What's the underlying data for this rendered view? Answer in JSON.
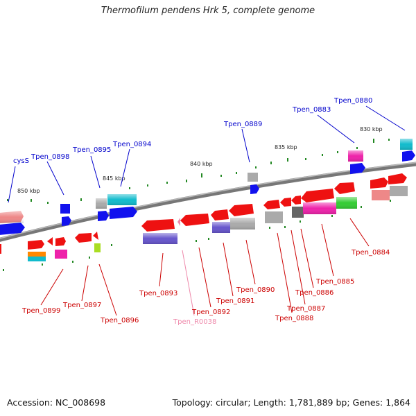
{
  "title": "Thermofilum pendens Hrk 5, complete genome",
  "footer": {
    "accession": "Accession: NC_008698",
    "summary": "Topology: circular; Length: 1,781,889 bp; Genes: 1,864"
  },
  "scale_labels": [
    "850 kbp",
    "845 kbp",
    "840 kbp",
    "835 kbp",
    "830 kbp"
  ],
  "gene_labels": {
    "top": [
      "cysS",
      "Tpen_0898",
      "Tpen_0895",
      "Tpen_0894",
      "Tpen_0889",
      "Tpen_0883",
      "Tpen_0880"
    ],
    "bottom": [
      "Tpen_0899",
      "Tpen_0897",
      "Tpen_0896",
      "Tpen_0893",
      "Tpen_R0038",
      "Tpen_0892",
      "Tpen_0891",
      "Tpen_0890",
      "Tpen_0888",
      "Tpen_0887",
      "Tpen_0886",
      "Tpen_0885",
      "Tpen_0884"
    ]
  },
  "colors": {
    "top_label": "#0000cc",
    "bottom_label": "#cc0000",
    "rna_label": "#ee88aa",
    "backbone": "#777777",
    "tick": "#228822",
    "cds": "#ee1111",
    "feature_blue": "#1111ee",
    "feature_cyan": "#11bbcc",
    "feature_grey": "#aaaaaa",
    "feature_magenta": "#ee22aa",
    "feature_purple": "#6655cc",
    "feature_green": "#33cc33",
    "feature_pink": "#ee8888",
    "feature_orange": "#ff8800",
    "feature_lime": "#aadd22"
  }
}
